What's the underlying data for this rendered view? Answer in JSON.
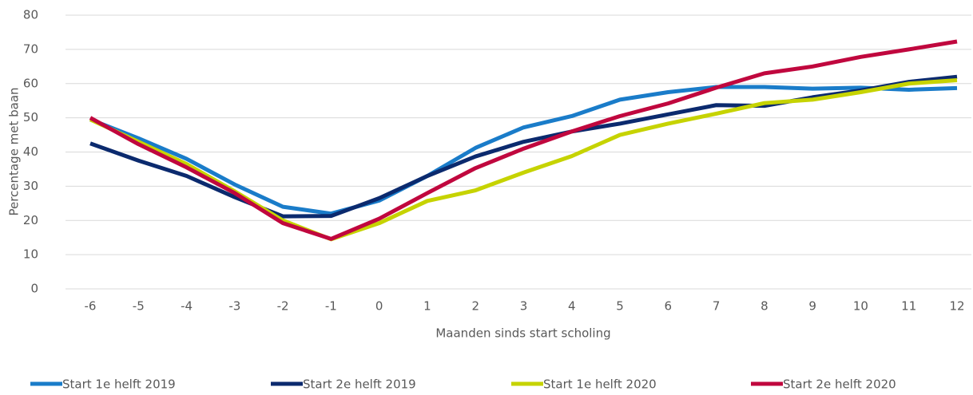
{
  "chart_data": {
    "type": "line",
    "x_label": "Maanden sinds start scholing",
    "y_label": "Percentage met baan",
    "x": [
      -6,
      -5,
      -4,
      -3,
      -2,
      -1,
      0,
      1,
      2,
      3,
      4,
      5,
      6,
      7,
      8,
      9,
      10,
      11,
      12
    ],
    "ylim": [
      0,
      80
    ],
    "yticks": [
      0,
      10,
      20,
      30,
      40,
      50,
      60,
      70,
      80
    ],
    "grid": true,
    "legend": "bottom",
    "series": [
      {
        "name": "Start 1e helft 2019",
        "color": "#1a7cc9",
        "values": [
          49.5,
          44,
          38,
          30.5,
          24,
          22,
          25.8,
          33,
          41.2,
          47.2,
          50.5,
          55.3,
          57.5,
          59,
          59,
          58.5,
          58.8,
          58.2,
          58.7
        ]
      },
      {
        "name": "Start 2e helft 2019",
        "color": "#0b2a6e",
        "values": [
          42.5,
          37.5,
          33,
          26.8,
          21.2,
          21.3,
          26.5,
          33,
          38.7,
          43,
          46,
          48.3,
          51,
          53.7,
          53.5,
          56,
          58,
          60.5,
          62
        ]
      },
      {
        "name": "Start 1e helft 2020",
        "color": "#c6d300",
        "values": [
          49.5,
          43,
          36.5,
          28.5,
          20,
          14.5,
          19.2,
          25.7,
          28.8,
          34,
          38.8,
          45,
          48.3,
          51.2,
          54.3,
          55.3,
          57.5,
          60,
          61
        ]
      },
      {
        "name": "Start 2e helft 2020",
        "color": "#c0073e",
        "values": [
          50,
          42.3,
          35.5,
          28,
          19.2,
          14.6,
          20.5,
          28,
          35.3,
          41,
          46,
          50.5,
          54.2,
          58.8,
          63,
          65,
          67.8,
          70,
          72.3
        ]
      }
    ]
  }
}
